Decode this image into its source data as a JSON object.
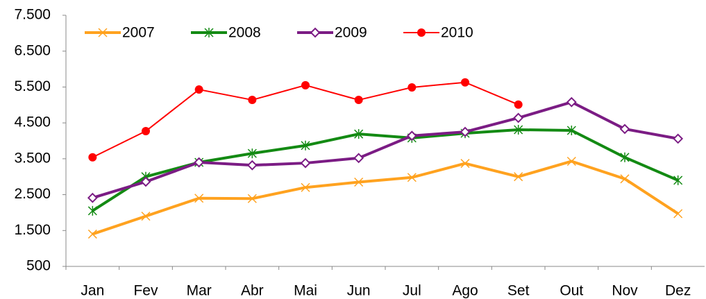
{
  "chart_data": {
    "type": "line",
    "categories": [
      "Jan",
      "Fev",
      "Mar",
      "Abr",
      "Mai",
      "Jun",
      "Jul",
      "Ago",
      "Set",
      "Out",
      "Nov",
      "Dez"
    ],
    "series": [
      {
        "name": "2007",
        "color": "#ffa21f",
        "marker": "x",
        "values": [
          1400,
          1900,
          2400,
          2390,
          2700,
          2850,
          2980,
          3370,
          3000,
          3430,
          2940,
          1970
        ]
      },
      {
        "name": "2008",
        "color": "#138a13",
        "marker": "asterisk",
        "values": [
          2050,
          3000,
          3400,
          3650,
          3870,
          4190,
          4080,
          4210,
          4310,
          4290,
          3540,
          2900
        ]
      },
      {
        "name": "2009",
        "color": "#7b1c84",
        "marker": "diamond",
        "values": [
          2410,
          2860,
          3400,
          3320,
          3380,
          3520,
          4140,
          4250,
          4640,
          5080,
          4330,
          4060
        ]
      },
      {
        "name": "2010",
        "color": "#ff0000",
        "marker": "circle",
        "values": [
          3540,
          4270,
          5430,
          5140,
          5550,
          5140,
          5490,
          5630,
          5010,
          null,
          null,
          null
        ]
      }
    ],
    "ylim": [
      500,
      7500
    ],
    "yticks": [
      500,
      {
        "value": 1500,
        "label": "1.500"
      },
      {
        "value": 2500,
        "label": "2.500"
      },
      {
        "value": 3500,
        "label": "3.500"
      },
      {
        "value": 4500,
        "label": "4.500"
      },
      {
        "value": 5500,
        "label": "5.500"
      },
      {
        "value": 6500,
        "label": "6.500"
      },
      {
        "value": 7500,
        "label": "7.500"
      }
    ],
    "grid": false,
    "legend": "upper left"
  }
}
